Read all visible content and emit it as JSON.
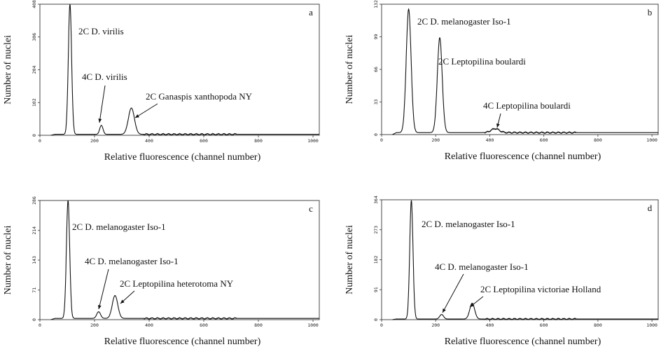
{
  "chart_data": [
    {
      "type": "line",
      "panel": "a",
      "xlabel": "Relative fluorescence (channel number)",
      "ylabel": "Number of nuclei",
      "xlim": [
        0,
        1023
      ],
      "ylim": [
        0,
        408
      ],
      "x_ticks": [
        0,
        200,
        400,
        600,
        800,
        1000
      ],
      "x_tick_labels": [
        "0",
        "200",
        "400",
        "600",
        "800",
        "1000"
      ],
      "y_ticks": [
        0,
        102,
        204,
        306,
        408
      ],
      "y_tick_labels": [
        "0",
        "102",
        "204",
        "306",
        "408"
      ],
      "baseline": 3,
      "peaks": [
        {
          "channel": 110,
          "height": 405,
          "width": 6
        },
        {
          "channel": 225,
          "height": 28,
          "width": 6
        },
        {
          "channel": 335,
          "height": 82,
          "width": 11
        }
      ],
      "annotations": [
        {
          "text": "2C D. virilis",
          "channel": 110,
          "arrow": false
        },
        {
          "text": "4C D. virilis",
          "channel": 225,
          "arrow": true
        },
        {
          "text": "2C Ganaspis xanthopoda NY",
          "channel": 335,
          "arrow": true
        }
      ]
    },
    {
      "type": "line",
      "panel": "b",
      "xlabel": "Relative fluorescence (channel number)",
      "ylabel": "Number of nuclei",
      "xlim": [
        0,
        1023
      ],
      "ylim": [
        0,
        132
      ],
      "x_ticks": [
        0,
        200,
        400,
        600,
        800,
        1000
      ],
      "x_tick_labels": [
        "0",
        "200",
        "400",
        "600",
        "800",
        "1000"
      ],
      "y_ticks": [
        0,
        33,
        66,
        99,
        132
      ],
      "y_tick_labels": [
        "0",
        "33",
        "66",
        "99",
        "132"
      ],
      "baseline": 2,
      "peaks": [
        {
          "channel": 100,
          "height": 125,
          "width": 9
        },
        {
          "channel": 215,
          "height": 96,
          "width": 9
        },
        {
          "channel": 420,
          "height": 4,
          "width": 15
        }
      ],
      "annotations": [
        {
          "text": "2C D. melanogaster Iso-1",
          "channel": 100,
          "arrow": false
        },
        {
          "text": "2C Leptopilina boulardi",
          "channel": 215,
          "arrow": false
        },
        {
          "text": "4C Leptopilina boulardi",
          "channel": 420,
          "arrow": true
        }
      ]
    },
    {
      "type": "line",
      "panel": "c",
      "xlabel": "Relative fluorescence (channel number)",
      "ylabel": "Number of nuclei",
      "xlim": [
        0,
        1023
      ],
      "ylim": [
        0,
        286
      ],
      "x_ticks": [
        0,
        200,
        400,
        600,
        800,
        1000
      ],
      "x_tick_labels": [
        "0",
        "200",
        "400",
        "600",
        "800",
        "1000"
      ],
      "y_ticks": [
        0,
        71,
        143,
        214,
        286
      ],
      "y_tick_labels": [
        "0",
        "71",
        "143",
        "214",
        "286"
      ],
      "baseline": 3,
      "peaks": [
        {
          "channel": 103,
          "height": 283,
          "width": 6
        },
        {
          "channel": 215,
          "height": 16,
          "width": 7
        },
        {
          "channel": 275,
          "height": 55,
          "width": 10
        }
      ],
      "annotations": [
        {
          "text": "2C D. melanogaster Iso-1",
          "channel": 103,
          "arrow": false
        },
        {
          "text": "4C D. melanogaster Iso-1",
          "channel": 215,
          "arrow": true
        },
        {
          "text": "2C Leptopilina heterotoma NY",
          "channel": 275,
          "arrow": true
        }
      ]
    },
    {
      "type": "line",
      "panel": "d",
      "xlabel": "Relative fluorescence (channel number)",
      "ylabel": "Number of nuclei",
      "xlim": [
        0,
        1023
      ],
      "ylim": [
        0,
        364
      ],
      "x_ticks": [
        0,
        200,
        400,
        600,
        800,
        1000
      ],
      "x_tick_labels": [
        "0",
        "200",
        "400",
        "600",
        "800",
        "1000"
      ],
      "y_ticks": [
        0,
        91,
        182,
        273,
        364
      ],
      "y_tick_labels": [
        "0",
        "91",
        "182",
        "273",
        "364"
      ],
      "baseline": 2,
      "peaks": [
        {
          "channel": 110,
          "height": 360,
          "width": 6
        },
        {
          "channel": 222,
          "height": 14,
          "width": 7
        },
        {
          "channel": 335,
          "height": 48,
          "width": 9
        }
      ],
      "annotations": [
        {
          "text": "2C D. melanogaster Iso-1",
          "channel": 110,
          "arrow": false
        },
        {
          "text": "4C D. melanogaster Iso-1",
          "channel": 222,
          "arrow": true
        },
        {
          "text": "2C Leptopilina victoriae Holland",
          "channel": 335,
          "arrow": true
        }
      ]
    }
  ]
}
